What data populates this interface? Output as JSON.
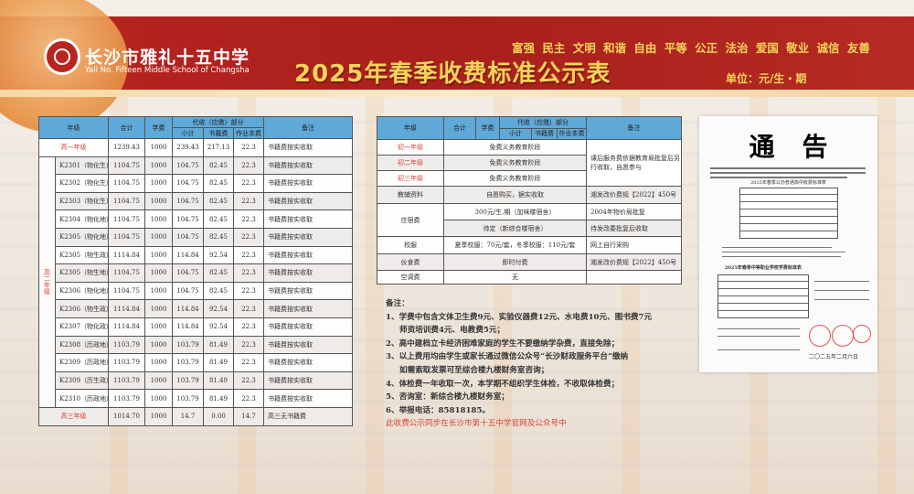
{
  "header": {
    "school_cn": "长沙市雅礼十五中学",
    "school_en": "Yali No. Fifteen Middle School of Changsha",
    "title": "2025年春季收费标准公示表",
    "core_values": "富强 民主 文明 和谐 自由 平等 公正 法治 爱国 敬业 诚信 友善",
    "unit": "单位：元/生・期"
  },
  "colors": {
    "header_red": "#b8241f",
    "title_gold": "#f8d35a",
    "table_header_blue": "#5fa9d9",
    "grade_red": "#d6443a"
  },
  "high_table": {
    "headers": {
      "grade": "年级",
      "total": "合计",
      "tuition": "学费",
      "agency": "代收（应缴）部分",
      "subtotal": "小计",
      "books": "书籍费",
      "workbook": "作业本费",
      "remark": "备注"
    },
    "grade1": {
      "grade": "高一年级",
      "total": "1239.43",
      "tuition": "1000",
      "subtotal": "239.43",
      "books": "217.13",
      "workbook": "22.3",
      "remark": "书籍费按实收取"
    },
    "grade2_label": "高二年级",
    "grade2_rows": [
      {
        "class": "K2301（物化生）",
        "total": "1104.75",
        "tuition": "1000",
        "subtotal": "104.75",
        "books": "82.45",
        "workbook": "22.3",
        "remark": "书籍费按实收取"
      },
      {
        "class": "K2302（物化生）",
        "total": "1104.75",
        "tuition": "1000",
        "subtotal": "104.75",
        "books": "82.45",
        "workbook": "22.3",
        "remark": "书籍费按实收取"
      },
      {
        "class": "K2303（物化生）",
        "total": "1104.75",
        "tuition": "1000",
        "subtotal": "104.75",
        "books": "82.45",
        "workbook": "22.3",
        "remark": "书籍费按实收取"
      },
      {
        "class": "K2304（物化地）",
        "total": "1104.75",
        "tuition": "1000",
        "subtotal": "104.75",
        "books": "82.45",
        "workbook": "22.3",
        "remark": "书籍费按实收取"
      },
      {
        "class": "K2305（物化地）",
        "total": "1104.75",
        "tuition": "1000",
        "subtotal": "104.75",
        "books": "82.45",
        "workbook": "22.3",
        "remark": "书籍费按实收取"
      },
      {
        "class": "K2305（物生政）",
        "total": "1114.84",
        "tuition": "1000",
        "subtotal": "114.84",
        "books": "92.54",
        "workbook": "22.3",
        "remark": "书籍费按实收取"
      },
      {
        "class": "K2305（物生地）",
        "total": "1104.75",
        "tuition": "1000",
        "subtotal": "104.75",
        "books": "82.45",
        "workbook": "22.3",
        "remark": "书籍费按实收取"
      },
      {
        "class": "K2306（物化地）",
        "total": "1104.75",
        "tuition": "1000",
        "subtotal": "104.75",
        "books": "82.45",
        "workbook": "22.3",
        "remark": "书籍费按实收取"
      },
      {
        "class": "K2306（物生政）",
        "total": "1114.84",
        "tuition": "1000",
        "subtotal": "114.84",
        "books": "92.54",
        "workbook": "22.3",
        "remark": "书籍费按实收取"
      },
      {
        "class": "K2307（物化政）",
        "total": "1114.84",
        "tuition": "1000",
        "subtotal": "114.84",
        "books": "92.54",
        "workbook": "22.3",
        "remark": "书籍费按实收取"
      },
      {
        "class": "K2308（历政地）",
        "total": "1103.79",
        "tuition": "1000",
        "subtotal": "103.79",
        "books": "81.49",
        "workbook": "22.3",
        "remark": "书籍费按实收取"
      },
      {
        "class": "K2309（历政地）",
        "total": "1103.79",
        "tuition": "1000",
        "subtotal": "103.79",
        "books": "81.49",
        "workbook": "22.3",
        "remark": "书籍费按实收取"
      },
      {
        "class": "K2309（历生政）",
        "total": "1103.79",
        "tuition": "1000",
        "subtotal": "103.79",
        "books": "81.49",
        "workbook": "22.3",
        "remark": "书籍费按实收取"
      },
      {
        "class": "K2310（历政地）",
        "total": "1103.79",
        "tuition": "1000",
        "subtotal": "103.79",
        "books": "81.49",
        "workbook": "22.3",
        "remark": "书籍费按实收取"
      }
    ],
    "grade3": {
      "grade": "高三年级",
      "total": "1014.70",
      "tuition": "1000",
      "subtotal": "14.7",
      "books": "0.00",
      "workbook": "14.7",
      "remark": "高三无书籍费"
    }
  },
  "middle_table": {
    "headers": {
      "grade": "年级",
      "total": "合计",
      "tuition": "学费",
      "agency": "代收（应缴）部分",
      "subtotal": "小计",
      "books": "书籍费",
      "workbook": "作业本费",
      "remark": "备注"
    },
    "grades": [
      {
        "grade": "初一年级",
        "content": "免费义务教育阶段"
      },
      {
        "grade": "初二年级",
        "content": "免费义务教育阶段"
      },
      {
        "grade": "初三年级",
        "content": "免费义务教育阶段"
      }
    ],
    "grades_remark": "课后服务费依据教育局批复后另行收取，自愿参与",
    "items": {
      "materials": {
        "name": "教辅资料",
        "content": "自愿购买，据实收取",
        "remark": "湘发改价费规【2022】450号"
      },
      "lodging": {
        "name": "住宿费",
        "content1": "300元/生.期（加味楼宿舍）",
        "remark1": "2004年物价局批复",
        "content2": "待定（新综合楼宿舍）",
        "remark2": "待发改委批复后收取"
      },
      "uniform": {
        "name": "校服",
        "content": "夏季校服：70元/套，冬季校服：110元/套",
        "remark": "网上自行采购"
      },
      "meals": {
        "name": "伙食费",
        "content": "即时付费",
        "remark": "湘发改价费规【2022】450号"
      },
      "aircon": {
        "name": "空调费",
        "content": "无",
        "remark": ""
      }
    }
  },
  "notes": {
    "title": "备注：",
    "lines": [
      "1、学费中包含文体卫生费9元、实验仪器费12元、水电费10元、图书费7元",
      "师资培训费4元、电教费5元；",
      "2、高中建档立卡经济困难家庭的学生不要缴纳学杂费，直接免除；",
      "3、以上费用均由学生或家长通过微信公众号“长沙财政服务平台”缴纳",
      "如需索取发票可至综合楼九楼财务室咨询；",
      "4、体检费一年收取一次，本学期不组织学生体检，不收取体检费；",
      "5、咨询室：新综合楼九楼财务室；",
      "6、举报电话：85818185。"
    ],
    "sync_notice": "此收费公示同步在长沙市第十五中学官网及公众号中"
  },
  "notice": {
    "title": "通告",
    "table1_title": "2025年春季公办普通高中收费标准表",
    "table2_title": "2025年春季中等职业学校学费标准表",
    "date": "二〇二五年二月六日"
  }
}
